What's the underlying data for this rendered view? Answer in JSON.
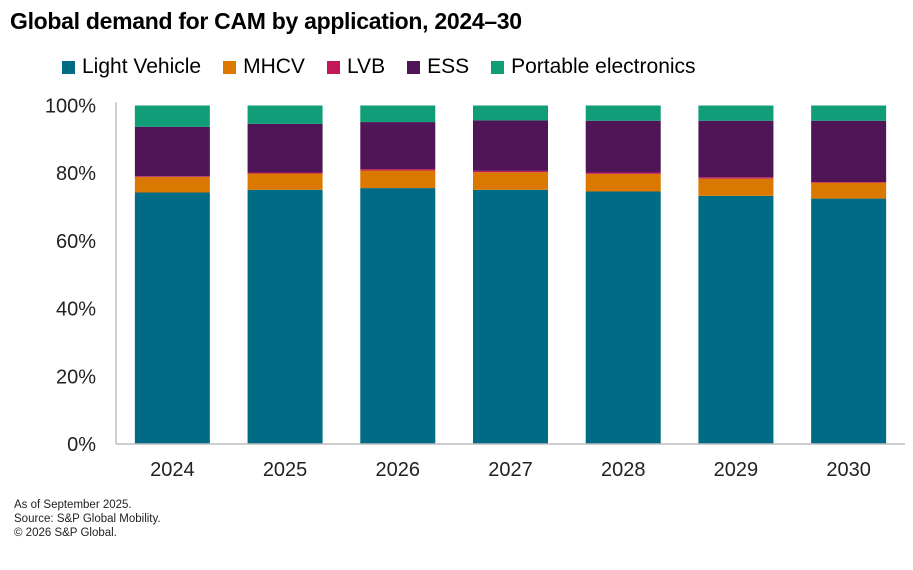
{
  "chart_data": {
    "type": "bar",
    "stacked": true,
    "title": "Global demand for CAM by application, 2024–30",
    "categories": [
      "2024",
      "2025",
      "2026",
      "2027",
      "2028",
      "2029",
      "2030"
    ],
    "ylim": [
      0,
      100
    ],
    "yticks": [
      "0%",
      "20%",
      "40%",
      "60%",
      "80%",
      "100%"
    ],
    "grid": false,
    "legend_position": "top",
    "series": [
      {
        "name": "Light Vehicle",
        "color": "#006b85",
        "values": [
          74.3,
          75.1,
          75.6,
          75.1,
          74.6,
          73.3,
          72.5
        ]
      },
      {
        "name": "MHCV",
        "color": "#db7800",
        "values": [
          4.6,
          4.8,
          5.2,
          5.2,
          5.2,
          5.1,
          4.7
        ]
      },
      {
        "name": "LVB",
        "color": "#c2185b",
        "values": [
          0.2,
          0.3,
          0.4,
          0.4,
          0.4,
          0.4,
          0.2
        ]
      },
      {
        "name": "ESS",
        "color": "#4f1556",
        "values": [
          14.6,
          14.4,
          13.9,
          14.9,
          15.3,
          16.7,
          18.1
        ]
      },
      {
        "name": "Portable electronics",
        "color": "#0f9e78",
        "values": [
          6.3,
          5.4,
          4.9,
          4.4,
          4.5,
          4.5,
          4.5
        ]
      }
    ]
  },
  "footer": {
    "note": "As of September 2025.",
    "source": "Source: S&P Global Mobility.",
    "copyright": "© 2026 S&P Global."
  }
}
